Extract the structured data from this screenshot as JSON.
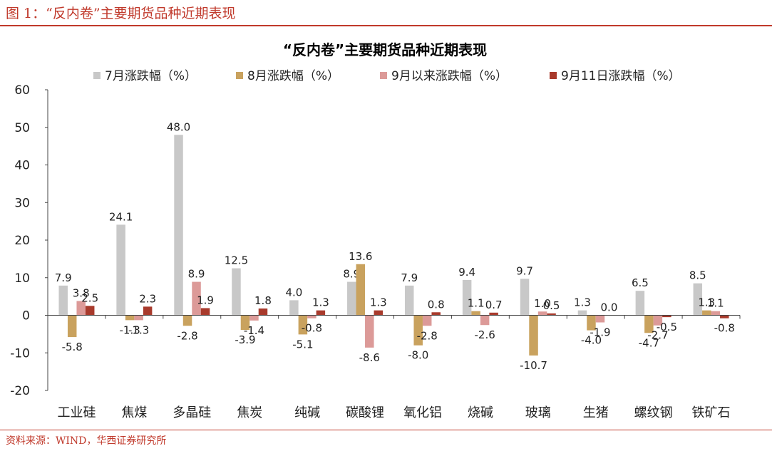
{
  "figure_title": "图 1：“反内卷”主要期货品种近期表现",
  "source_note": "资料来源：WIND，华西证券研究所",
  "chart_data": {
    "type": "bar",
    "title": "“反内卷”主要期货品种近期表现",
    "categories": [
      "工业硅",
      "焦煤",
      "多晶硅",
      "焦炭",
      "纯碱",
      "碳酸锂",
      "氧化铝",
      "烧碱",
      "玻璃",
      "生猪",
      "螺纹钢",
      "铁矿石"
    ],
    "series": [
      {
        "name": "7月涨跌幅（%）",
        "color": "#c8c8c8",
        "values": [
          7.9,
          24.1,
          48.0,
          12.5,
          4.0,
          8.9,
          7.9,
          9.4,
          9.7,
          1.3,
          6.5,
          8.5
        ]
      },
      {
        "name": "8月涨跌幅（%）",
        "color": "#c9a25e",
        "values": [
          -5.8,
          -1.3,
          -2.8,
          -3.9,
          -5.1,
          13.6,
          -8.0,
          1.1,
          -10.7,
          -4.0,
          -4.7,
          1.3
        ]
      },
      {
        "name": "9月以来涨跌幅（%）",
        "color": "#dc9a98",
        "values": [
          3.8,
          -1.3,
          8.9,
          -1.4,
          -0.8,
          -8.6,
          -2.8,
          -2.6,
          1.0,
          -1.9,
          -2.7,
          1.1
        ]
      },
      {
        "name": "9月11日涨跌幅（%）",
        "color": "#a83a2c",
        "values": [
          2.5,
          2.3,
          1.9,
          1.8,
          1.3,
          1.3,
          0.8,
          0.7,
          0.5,
          0.0,
          -0.5,
          -0.8
        ]
      }
    ],
    "ylim": [
      -20,
      60
    ],
    "yticks": [
      -20,
      -10,
      0,
      10,
      20,
      30,
      40,
      50,
      60
    ],
    "grid": false,
    "legend": "top"
  }
}
